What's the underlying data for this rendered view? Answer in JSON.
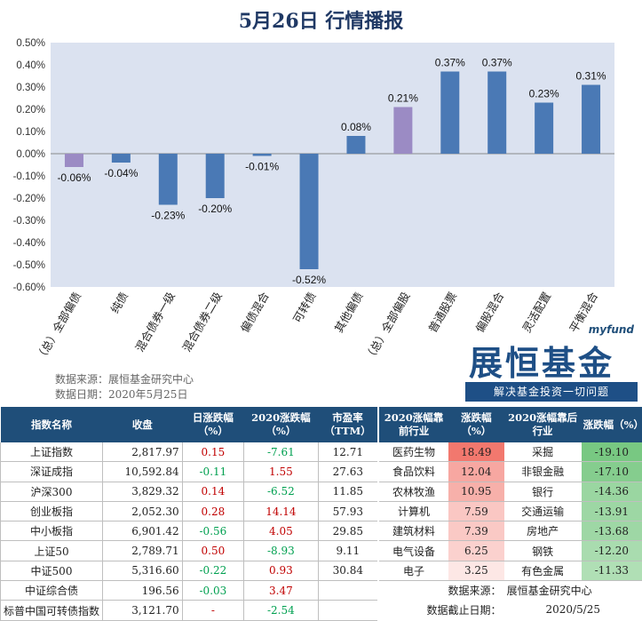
{
  "title": "5月26日  行情播报",
  "colors": {
    "accent": "#4a79b5",
    "highlight": "#9b8bc4",
    "plot_bg": "#dbe2f0",
    "header_bg": "#1f4e79",
    "up": "#c00000",
    "down": "#00a050"
  },
  "chart_data": {
    "type": "bar",
    "title": "5月26日  行情播报",
    "categories": [
      "（总）全部偏债",
      "纯债",
      "混合债券一级",
      "混合债券二级",
      "偏债混合",
      "可转债",
      "其他偏债",
      "（总）全部偏股",
      "普通股票",
      "偏股混合",
      "灵活配置",
      "平衡混合"
    ],
    "values": [
      -0.06,
      -0.04,
      -0.23,
      -0.2,
      -0.01,
      -0.52,
      0.08,
      0.21,
      0.37,
      0.37,
      0.23,
      0.31
    ],
    "value_labels": [
      "-0.06%",
      "-0.04%",
      "-0.23%",
      "-0.20%",
      "-0.01%",
      "-0.52%",
      "0.08%",
      "0.21%",
      "0.37%",
      "0.37%",
      "0.23%",
      "0.31%"
    ],
    "highlight": [
      true,
      false,
      false,
      false,
      false,
      false,
      false,
      true,
      false,
      false,
      false,
      false
    ],
    "ylim": [
      -0.6,
      0.5
    ],
    "yticks": [
      "0.50%",
      "0.40%",
      "0.30%",
      "0.20%",
      "0.10%",
      "0.00%",
      "-0.10%",
      "-0.20%",
      "-0.30%",
      "-0.40%",
      "-0.50%",
      "-0.60%"
    ],
    "xlabel": "",
    "ylabel": "",
    "grid": false
  },
  "source": {
    "line1": "数据来源：展恒基金研究中心",
    "line2": "数据日期：2020年5月25日"
  },
  "logo": {
    "brand": "myfund",
    "name": "展恒基金",
    "slogan": "解决基金投资一切问题"
  },
  "index_table": {
    "headers": [
      "指数名称",
      "收盘",
      "日涨跌幅（%）",
      "2020涨跌幅（%）",
      "市盈率（TTM）"
    ],
    "rows": [
      {
        "name": "上证指数",
        "close": "2,817.97",
        "day": "0.15",
        "ytd": "-7.61",
        "pe": "12.71"
      },
      {
        "name": "深证成指",
        "close": "10,592.84",
        "day": "-0.11",
        "ytd": "1.55",
        "pe": "27.63"
      },
      {
        "name": "沪深300",
        "close": "3,829.32",
        "day": "0.14",
        "ytd": "-6.52",
        "pe": "11.85"
      },
      {
        "name": "创业板指",
        "close": "2,052.30",
        "day": "0.28",
        "ytd": "14.14",
        "pe": "57.93"
      },
      {
        "name": "中小板指",
        "close": "6,901.42",
        "day": "-0.56",
        "ytd": "4.05",
        "pe": "29.85"
      },
      {
        "name": "上证50",
        "close": "2,789.71",
        "day": "0.50",
        "ytd": "-8.93",
        "pe": "9.11"
      },
      {
        "name": "中证500",
        "close": "5,316.60",
        "day": "-0.22",
        "ytd": "0.93",
        "pe": "30.84"
      },
      {
        "name": "中证综合债",
        "close": "196.56",
        "day": "-0.03",
        "ytd": "3.47",
        "pe": ""
      },
      {
        "name": "标普中国可转债指数",
        "close": "3,121.70",
        "day": "-",
        "ytd": "-2.54",
        "pe": ""
      }
    ]
  },
  "industry_table": {
    "headers": [
      "2020涨幅靠前行业",
      "涨跌幅（%）",
      "2020涨幅靠后行业",
      "涨跌幅（%）"
    ],
    "rows": [
      {
        "top": "医药生物",
        "top_val": "18.49",
        "bottom": "采掘",
        "bottom_val": "-19.10"
      },
      {
        "top": "食品饮料",
        "top_val": "12.04",
        "bottom": "非银金融",
        "bottom_val": "-17.10"
      },
      {
        "top": "农林牧渔",
        "top_val": "10.95",
        "bottom": "银行",
        "bottom_val": "-14.36"
      },
      {
        "top": "计算机",
        "top_val": "7.59",
        "bottom": "交通运输",
        "bottom_val": "-13.91"
      },
      {
        "top": "建筑材料",
        "top_val": "7.39",
        "bottom": "房地产",
        "bottom_val": "-13.68"
      },
      {
        "top": "电气设备",
        "top_val": "6.25",
        "bottom": "钢铁",
        "bottom_val": "-12.20"
      },
      {
        "top": "电子",
        "top_val": "3.25",
        "bottom": "有色金属",
        "bottom_val": "-11.33"
      }
    ],
    "footer": {
      "source_label": "数据来源：",
      "source": "展恒基金研究中心",
      "date_label": "数据截止日期：",
      "date": "2020/5/25"
    }
  }
}
